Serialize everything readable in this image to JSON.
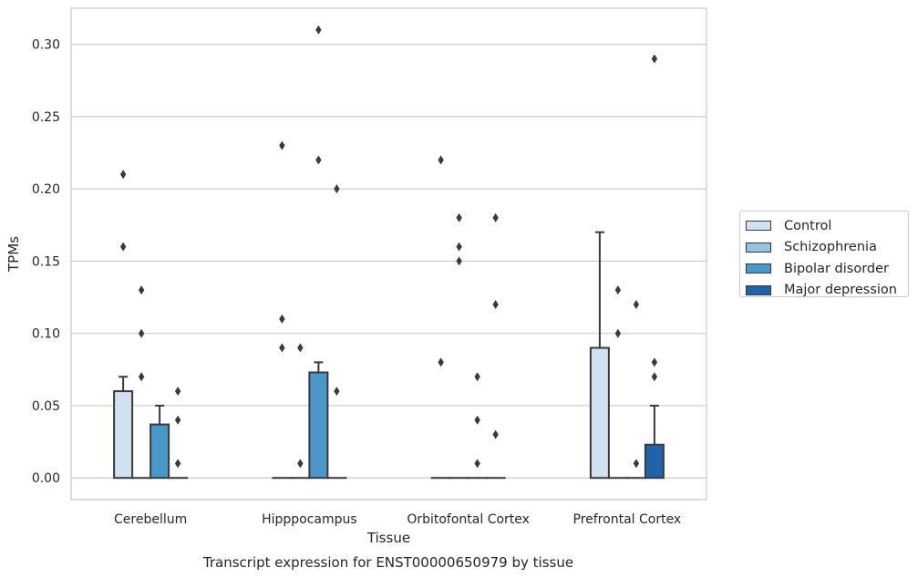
{
  "chart_data": {
    "type": "bar",
    "title": "Transcript expression for ENST00000650979 by tissue",
    "xlabel": "Tissue",
    "ylabel": "TPMs",
    "ylim": [
      -0.015,
      0.325
    ],
    "yticks": [
      "0.00",
      "0.05",
      "0.10",
      "0.15",
      "0.20",
      "0.25",
      "0.30"
    ],
    "ytick_values": [
      0,
      0.05,
      0.1,
      0.15,
      0.2,
      0.25,
      0.3
    ],
    "grid": true,
    "legend_position": "right",
    "categories": [
      "Cerebellum",
      "Hipppocampus",
      "Orbitofontal Cortex",
      "Prefrontal Cortex"
    ],
    "series": [
      {
        "name": "Control",
        "color": "#d0e1f2",
        "values": [
          0.06,
          0.0,
          0.0,
          0.09
        ],
        "whisker_high": [
          0.07,
          0.0,
          0.0,
          0.17
        ],
        "outliers": [
          [
            0.21,
            0.16
          ],
          [
            0.23,
            0.11,
            0.09
          ],
          [
            0.22,
            0.08
          ],
          []
        ]
      },
      {
        "name": "Schizophrenia",
        "color": "#94c4df",
        "values": [
          0.0,
          0.0,
          0.0,
          0.0
        ],
        "whisker_high": [
          0.0,
          0.0,
          0.0,
          0.0
        ],
        "outliers": [
          [
            0.13,
            0.1,
            0.07
          ],
          [
            0.09,
            0.01
          ],
          [
            0.18,
            0.16,
            0.15
          ],
          [
            0.13,
            0.1
          ]
        ]
      },
      {
        "name": "Bipolar disorder",
        "color": "#4a98c9",
        "values": [
          0.037,
          0.073,
          0.0,
          0.0
        ],
        "whisker_high": [
          0.05,
          0.08,
          0.0,
          0.0
        ],
        "outliers": [
          [],
          [
            0.31,
            0.22
          ],
          [
            0.07,
            0.04,
            0.01
          ],
          [
            0.12,
            0.01
          ]
        ]
      },
      {
        "name": "Major depression",
        "color": "#2163aa",
        "values": [
          0.0,
          0.0,
          0.0,
          0.023
        ],
        "whisker_high": [
          0.0,
          0.0,
          0.0,
          0.05
        ],
        "outliers": [
          [
            0.06,
            0.04,
            0.01
          ],
          [
            0.2,
            0.06
          ],
          [
            0.18,
            0.12,
            0.03
          ],
          [
            0.29,
            0.08,
            0.07
          ]
        ]
      }
    ]
  }
}
